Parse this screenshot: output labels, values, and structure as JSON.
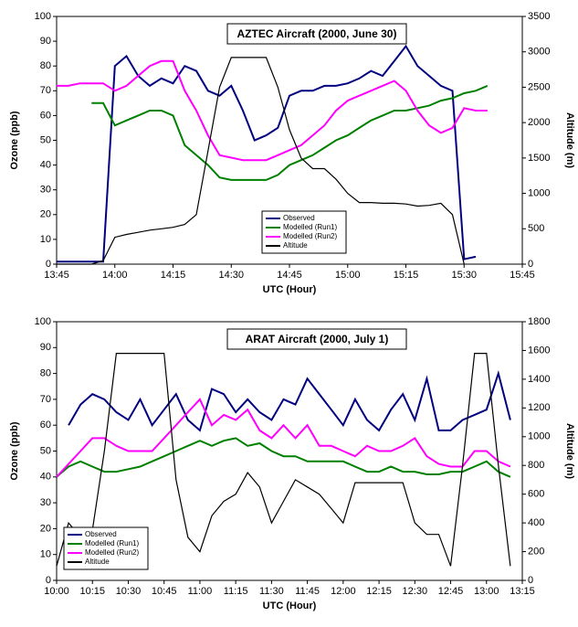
{
  "chart_data": [
    {
      "type": "line",
      "title": "AZTEC Aircraft (2000, June 30)",
      "xlabel": "UTC (Hour)",
      "ylabel": "Ozone (ppb)",
      "y2label": "Altitude (m)",
      "x": [
        "13:45",
        "13:48",
        "13:51",
        "13:54",
        "13:57",
        "14:00",
        "14:03",
        "14:06",
        "14:09",
        "14:12",
        "14:15",
        "14:18",
        "14:21",
        "14:24",
        "14:27",
        "14:30",
        "14:33",
        "14:36",
        "14:39",
        "14:42",
        "14:45",
        "14:48",
        "14:51",
        "14:54",
        "14:57",
        "15:00",
        "15:03",
        "15:06",
        "15:09",
        "15:12",
        "15:15",
        "15:18",
        "15:21",
        "15:24",
        "15:27",
        "15:30",
        "15:33",
        "15:36"
      ],
      "xlim": [
        "13:45",
        "15:45"
      ],
      "xticks": [
        "13:45",
        "14:00",
        "14:15",
        "14:30",
        "14:45",
        "15:00",
        "15:15",
        "15:30",
        "15:45"
      ],
      "ylim": [
        0,
        100
      ],
      "yticks": [
        0,
        10,
        20,
        30,
        40,
        50,
        60,
        70,
        80,
        90,
        100
      ],
      "y2lim": [
        0,
        3500
      ],
      "y2ticks": [
        0,
        500,
        1000,
        1500,
        2000,
        2500,
        3000,
        3500
      ],
      "legend": "lower center",
      "series": [
        {
          "name": "Observed",
          "color": "#000080",
          "values": [
            1,
            1,
            1,
            1,
            1,
            80,
            84,
            76,
            72,
            75,
            73,
            80,
            78,
            70,
            68,
            72,
            62,
            50,
            52,
            55,
            68,
            70,
            70,
            72,
            72,
            73,
            75,
            78,
            76,
            82,
            88,
            80,
            76,
            72,
            70,
            2,
            3,
            null
          ]
        },
        {
          "name": "Modelled (Run1)",
          "color": "#008000",
          "values": [
            null,
            null,
            null,
            65,
            65,
            56,
            58,
            60,
            62,
            62,
            60,
            48,
            44,
            40,
            35,
            34,
            34,
            34,
            34,
            36,
            40,
            42,
            44,
            47,
            50,
            52,
            55,
            58,
            60,
            62,
            62,
            63,
            64,
            66,
            67,
            69,
            70,
            72
          ]
        },
        {
          "name": "Modelled (Run2)",
          "color": "#ff00ff",
          "values": [
            72,
            72,
            73,
            73,
            73,
            70,
            72,
            76,
            80,
            82,
            82,
            70,
            62,
            52,
            44,
            43,
            42,
            42,
            42,
            44,
            46,
            48,
            52,
            56,
            62,
            66,
            68,
            70,
            72,
            74,
            70,
            62,
            56,
            53,
            55,
            63,
            62,
            62
          ]
        },
        {
          "name": "Altitude",
          "color": "#000000",
          "axis": "y2",
          "values": [
            0,
            0,
            0,
            0,
            50,
            380,
            420,
            450,
            480,
            500,
            520,
            560,
            700,
            1600,
            2500,
            2920,
            2920,
            2920,
            2920,
            2500,
            1900,
            1500,
            1350,
            1350,
            1200,
            1000,
            870,
            870,
            860,
            860,
            850,
            820,
            830,
            860,
            700,
            0,
            null,
            null
          ]
        }
      ]
    },
    {
      "type": "line",
      "title": "ARAT Aircraft (2000, July 1)",
      "xlabel": "UTC (Hour)",
      "ylabel": "Ozone (ppb)",
      "y2label": "Altitude (m)",
      "x": [
        "10:00",
        "10:05",
        "10:10",
        "10:15",
        "10:20",
        "10:25",
        "10:30",
        "10:35",
        "10:40",
        "10:45",
        "10:50",
        "10:55",
        "11:00",
        "11:05",
        "11:10",
        "11:15",
        "11:20",
        "11:25",
        "11:30",
        "11:35",
        "11:40",
        "11:45",
        "11:50",
        "11:55",
        "12:00",
        "12:05",
        "12:10",
        "12:15",
        "12:20",
        "12:25",
        "12:30",
        "12:35",
        "12:40",
        "12:45",
        "12:50",
        "12:55",
        "13:00",
        "13:05",
        "13:10"
      ],
      "xlim": [
        "10:00",
        "13:15"
      ],
      "xticks": [
        "10:00",
        "10:15",
        "10:30",
        "10:45",
        "11:00",
        "11:15",
        "11:30",
        "11:45",
        "12:00",
        "12:15",
        "12:30",
        "12:45",
        "13:00",
        "13:15"
      ],
      "ylim": [
        0,
        100
      ],
      "yticks": [
        0,
        10,
        20,
        30,
        40,
        50,
        60,
        70,
        80,
        90,
        100
      ],
      "y2lim": [
        0,
        1800
      ],
      "y2ticks": [
        0,
        200,
        400,
        600,
        800,
        1000,
        1200,
        1400,
        1600,
        1800
      ],
      "legend": "lower left",
      "series": [
        {
          "name": "Observed",
          "color": "#000080",
          "values": [
            null,
            60,
            68,
            72,
            70,
            65,
            62,
            70,
            60,
            66,
            72,
            62,
            58,
            74,
            72,
            65,
            70,
            65,
            62,
            70,
            68,
            78,
            72,
            66,
            60,
            70,
            62,
            58,
            66,
            72,
            62,
            78,
            58,
            58,
            62,
            64,
            66,
            80,
            62
          ]
        },
        {
          "name": "Modelled (Run1)",
          "color": "#008000",
          "values": [
            40,
            44,
            46,
            44,
            42,
            42,
            43,
            44,
            46,
            48,
            50,
            52,
            54,
            52,
            54,
            55,
            52,
            53,
            50,
            48,
            48,
            46,
            46,
            46,
            46,
            44,
            42,
            42,
            44,
            42,
            42,
            41,
            41,
            42,
            42,
            44,
            46,
            42,
            40
          ]
        },
        {
          "name": "Modelled (Run2)",
          "color": "#ff00ff",
          "values": [
            40,
            45,
            50,
            55,
            55,
            52,
            50,
            50,
            50,
            55,
            60,
            65,
            70,
            60,
            64,
            62,
            66,
            58,
            55,
            60,
            55,
            60,
            52,
            52,
            50,
            48,
            52,
            50,
            50,
            52,
            55,
            48,
            45,
            44,
            44,
            50,
            50,
            46,
            44
          ]
        },
        {
          "name": "Altitude",
          "color": "#000000",
          "axis": "y2",
          "values": [
            100,
            400,
            300,
            350,
            900,
            1580,
            1580,
            1580,
            1580,
            1580,
            700,
            300,
            200,
            450,
            550,
            600,
            750,
            650,
            400,
            550,
            700,
            650,
            600,
            500,
            400,
            680,
            680,
            680,
            680,
            680,
            400,
            320,
            320,
            100,
            800,
            1580,
            1580,
            800,
            100
          ]
        }
      ]
    }
  ]
}
